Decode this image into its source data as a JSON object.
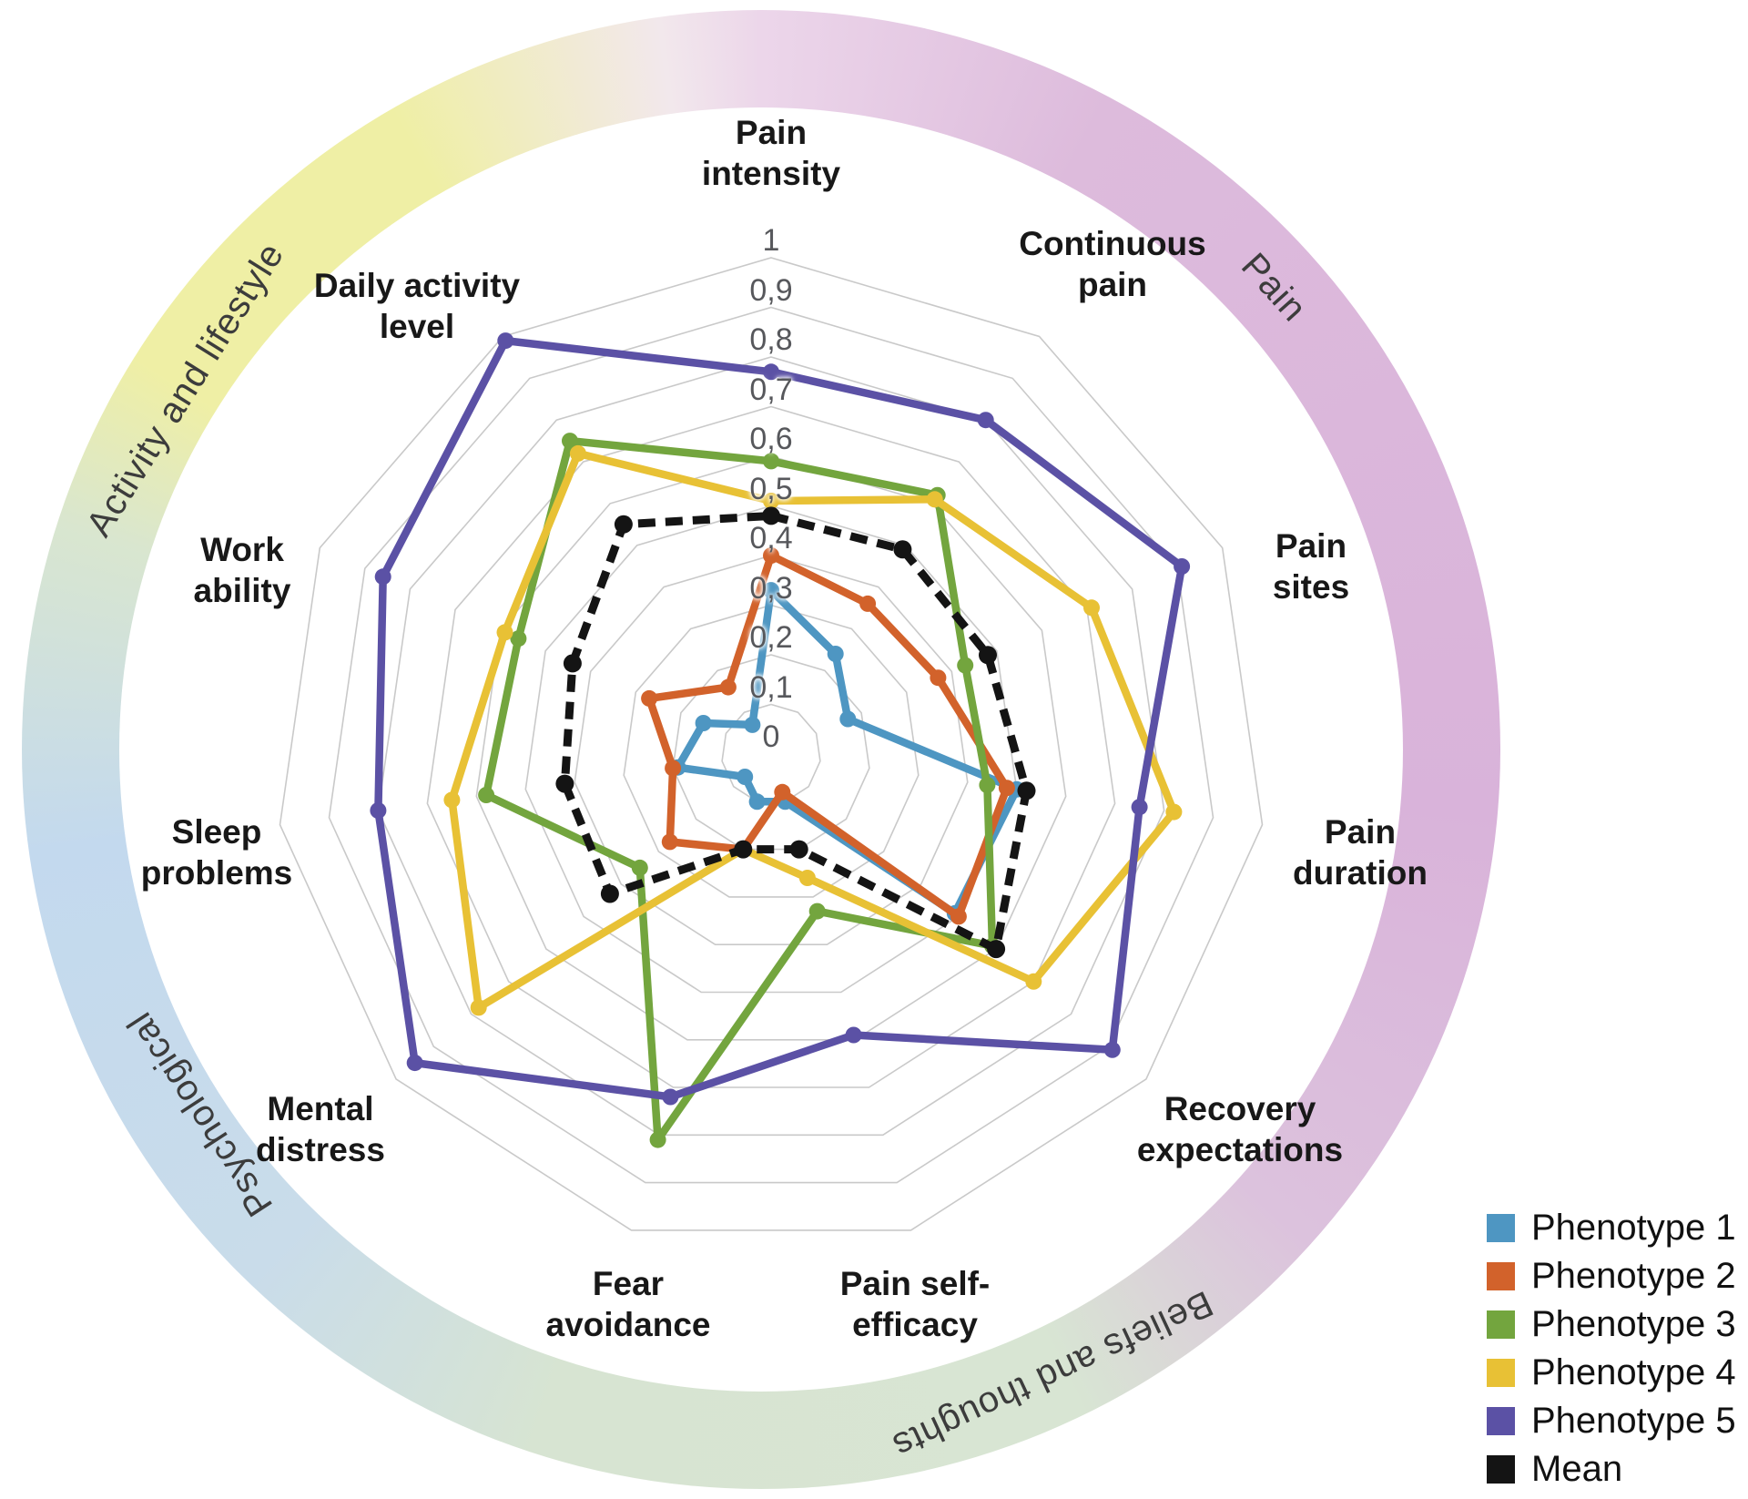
{
  "chart_data": {
    "type": "radar",
    "title": "",
    "scale": {
      "min": 0,
      "max": 1,
      "step": 0.1,
      "grid": true,
      "decimal_separator": ","
    },
    "tick_labels": [
      "1",
      "0,9",
      "0,8",
      "0,7",
      "0,6",
      "0,5",
      "0,4",
      "0,3",
      "0,2",
      "0,1",
      "0"
    ],
    "axes": [
      {
        "label": "Pain intensity",
        "lines": [
          "Pain",
          "intensity"
        ]
      },
      {
        "label": "Continuous pain",
        "lines": [
          "Continuous",
          "pain"
        ]
      },
      {
        "label": "Pain sites",
        "lines": [
          "Pain",
          "sites"
        ]
      },
      {
        "label": "Pain duration",
        "lines": [
          "Pain",
          "duration"
        ]
      },
      {
        "label": "Recovery expectations",
        "lines": [
          "Recovery",
          "expectations"
        ]
      },
      {
        "label": "Pain self-efficacy",
        "lines": [
          "Pain self-",
          "efficacy"
        ]
      },
      {
        "label": "Fear avoidance",
        "lines": [
          "Fear",
          "avoidance"
        ]
      },
      {
        "label": "Mental distress",
        "lines": [
          "Mental",
          "distress"
        ]
      },
      {
        "label": "Sleep problems",
        "lines": [
          "Sleep",
          "problems"
        ]
      },
      {
        "label": "Work ability",
        "lines": [
          "Work",
          "ability"
        ]
      },
      {
        "label": "Daily activity level",
        "lines": [
          "Daily activity",
          "level"
        ]
      }
    ],
    "series": [
      {
        "name": "Phenotype 1",
        "color": "#4e96c2",
        "dashed": false,
        "values": [
          0.33,
          0.24,
          0.17,
          0.5,
          0.49,
          0.1,
          0.1,
          0.07,
          0.19,
          0.15,
          0.07
        ]
      },
      {
        "name": "Phenotype 2",
        "color": "#d2622b",
        "dashed": false,
        "values": [
          0.4,
          0.36,
          0.37,
          0.48,
          0.5,
          0.08,
          0.2,
          0.27,
          0.2,
          0.27,
          0.16
        ]
      },
      {
        "name": "Phenotype 3",
        "color": "#73a53e",
        "dashed": false,
        "values": [
          0.59,
          0.62,
          0.43,
          0.44,
          0.59,
          0.33,
          0.81,
          0.35,
          0.58,
          0.56,
          0.75
        ]
      },
      {
        "name": "Phenotype 4",
        "color": "#e8c135",
        "dashed": false,
        "values": [
          0.51,
          0.61,
          0.71,
          0.82,
          0.7,
          0.26,
          0.2,
          0.78,
          0.65,
          0.59,
          0.72
        ]
      },
      {
        "name": "Phenotype 5",
        "color": "#5b51a5",
        "dashed": false,
        "values": [
          0.77,
          0.8,
          0.91,
          0.75,
          0.91,
          0.59,
          0.72,
          0.95,
          0.8,
          0.86,
          0.99
        ]
      },
      {
        "name": "Mean",
        "color": "#141414",
        "dashed": true,
        "values": [
          0.48,
          0.49,
          0.48,
          0.52,
          0.6,
          0.2,
          0.2,
          0.43,
          0.42,
          0.44,
          0.55
        ]
      }
    ],
    "ring_categories": [
      {
        "label": "Pain",
        "color": "#ddbbdc"
      },
      {
        "label": "Beliefs and thoughts",
        "color": "#d8e5d3"
      },
      {
        "label": "Psychological",
        "color": "#c3d9ee"
      },
      {
        "label": "Activity and lifestyle",
        "color": "#efefa5"
      }
    ],
    "legend": [
      {
        "label": "Phenotype 1",
        "color": "#4e96c2"
      },
      {
        "label": "Phenotype 2",
        "color": "#d2622b"
      },
      {
        "label": "Phenotype 3",
        "color": "#73a53e"
      },
      {
        "label": "Phenotype 4",
        "color": "#e8c135"
      },
      {
        "label": "Phenotype 5",
        "color": "#5b51a5"
      },
      {
        "label": "Mean",
        "color": "#141414"
      }
    ],
    "legend_position": "bottom-right"
  }
}
